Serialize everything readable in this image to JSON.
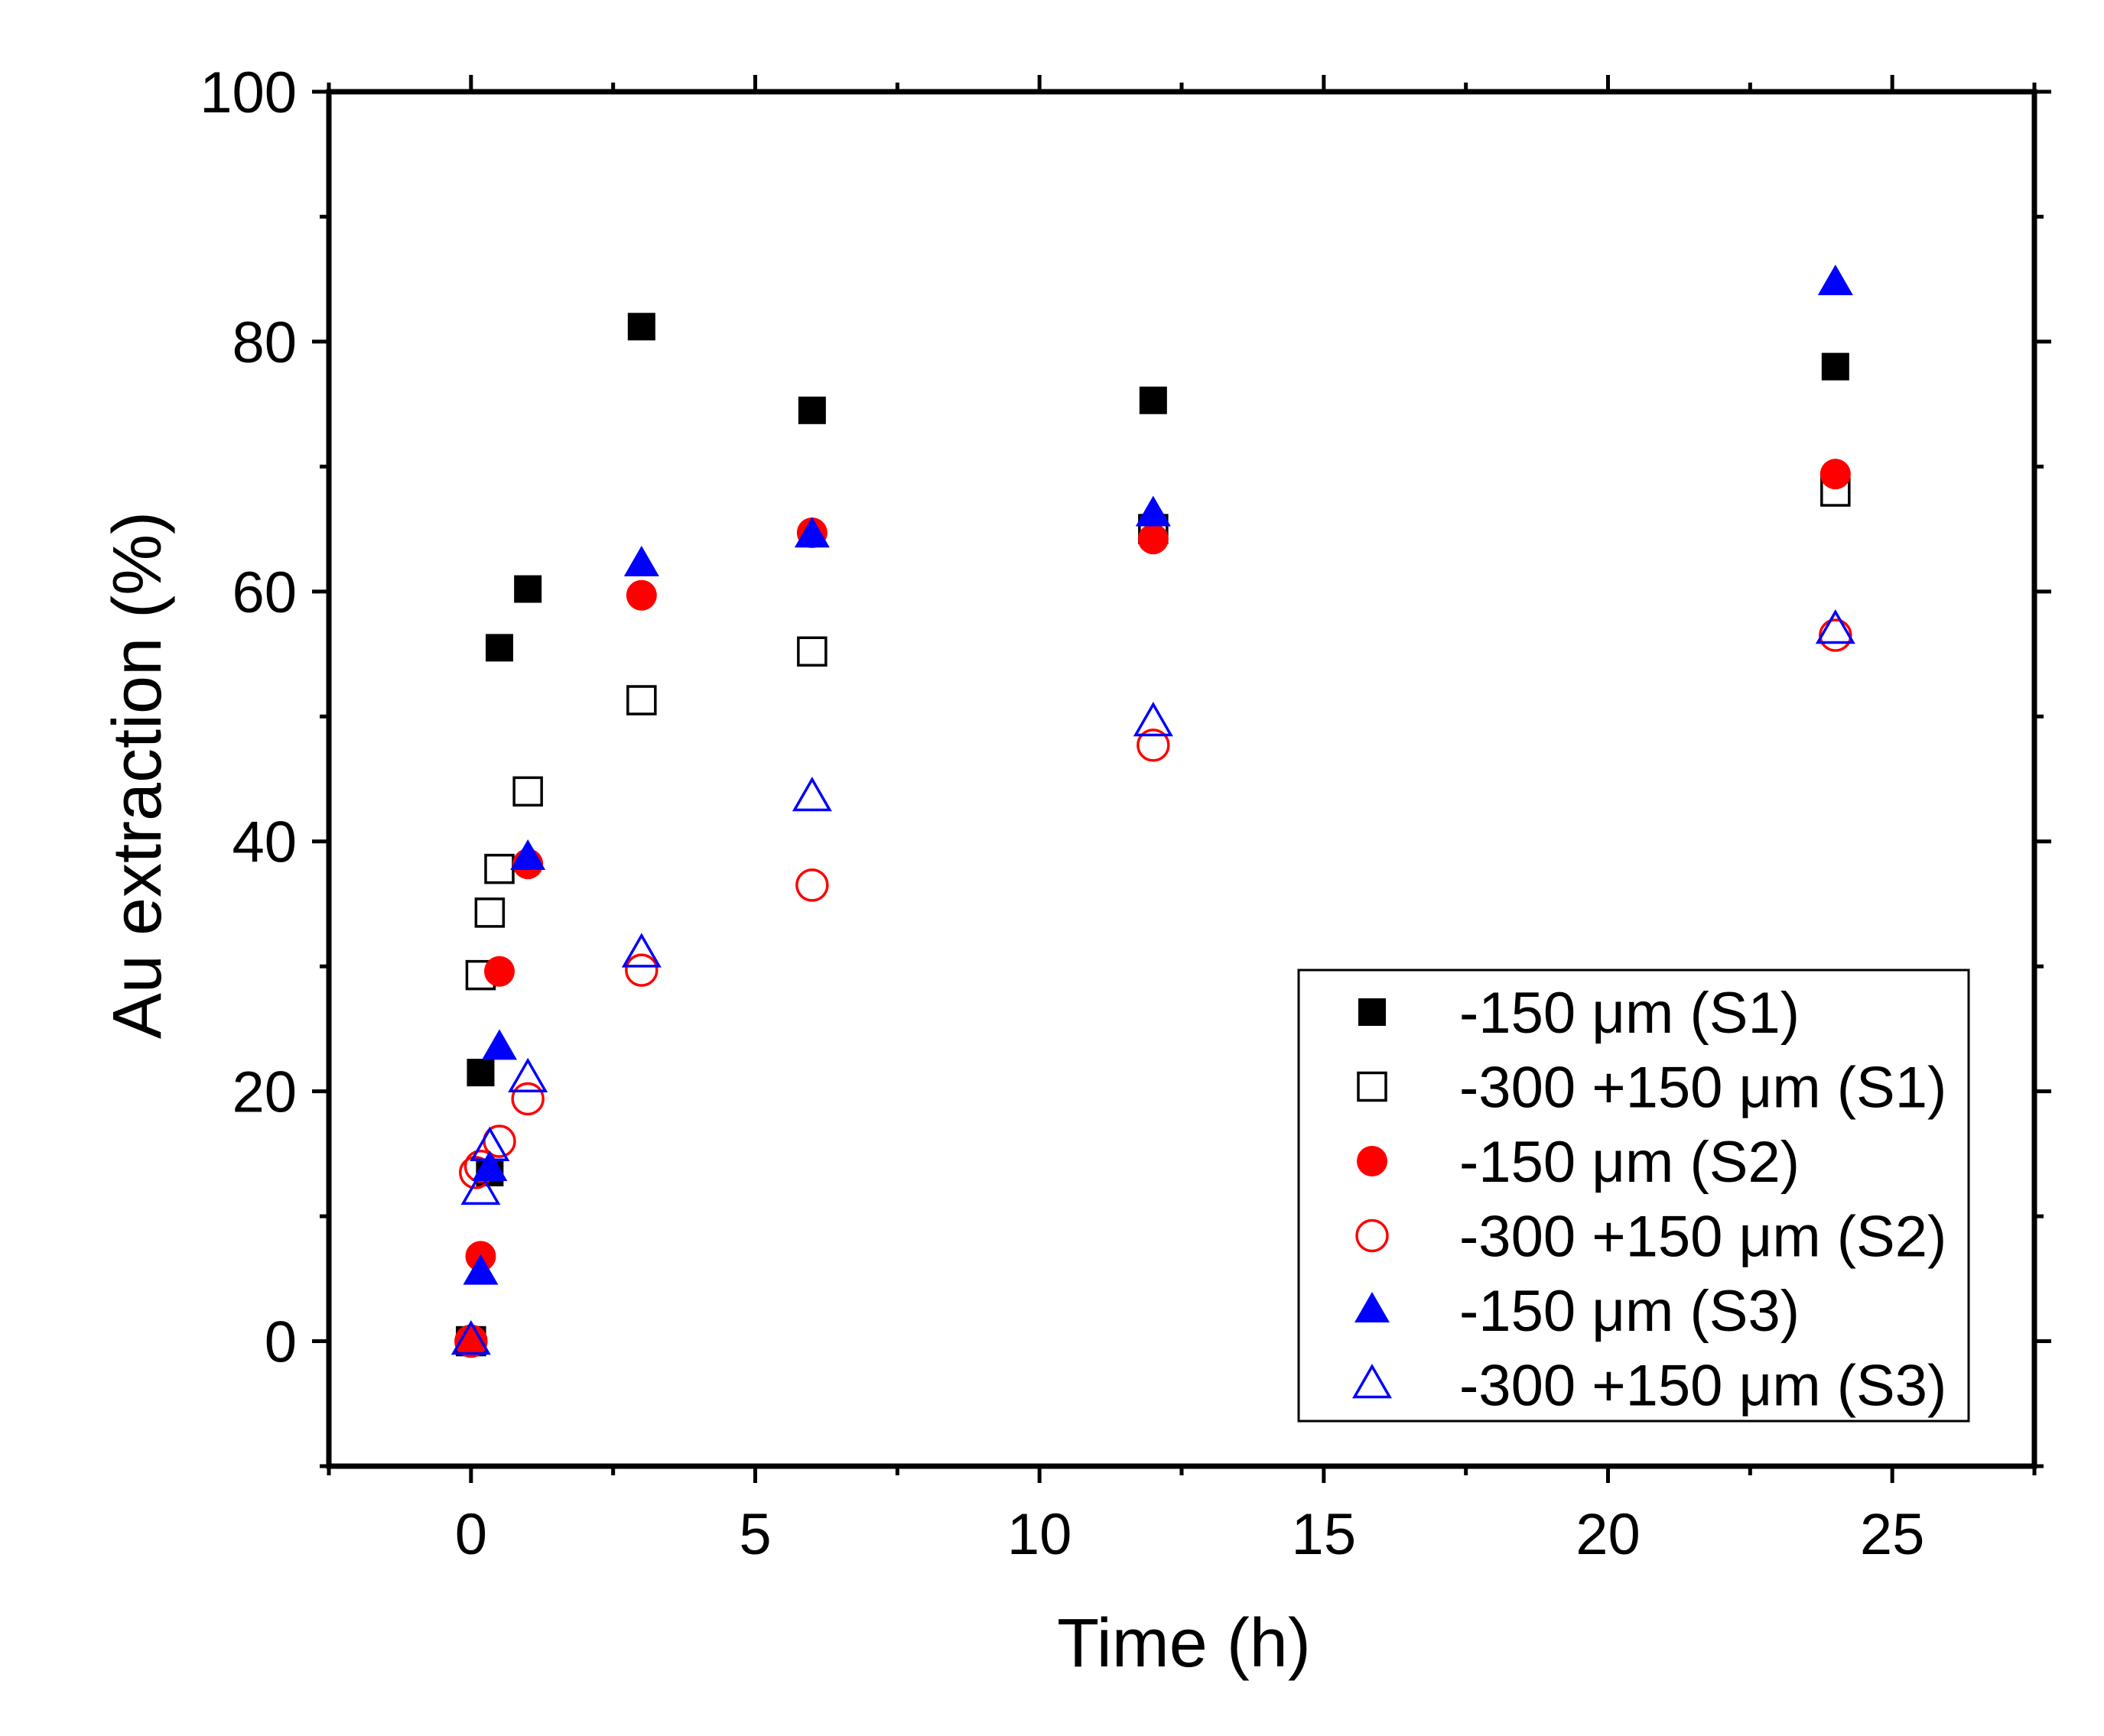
{
  "chart_data": {
    "type": "scatter",
    "title": "",
    "xlabel": "Time (h)",
    "ylabel": "Au extraction (%)",
    "xlim": [
      -2.5,
      27.5
    ],
    "ylim": [
      -10,
      100
    ],
    "xticks": [
      0,
      5,
      10,
      15,
      20,
      25
    ],
    "xtick_labels": [
      "0",
      "5",
      "10",
      "15",
      "20",
      "25"
    ],
    "yticks": [
      0,
      20,
      40,
      60,
      80,
      100
    ],
    "ytick_labels": [
      "0",
      "20",
      "40",
      "60",
      "80",
      "100"
    ],
    "x_minor_step": 2.5,
    "y_minor_step": 10,
    "grid": false,
    "legend_position": "bottom-right",
    "series": [
      {
        "name": "-150 μm (S1)",
        "marker": "square",
        "filled": true,
        "color": "#000000",
        "x": [
          0,
          0.17,
          0.33,
          0.5,
          1,
          3,
          6,
          12,
          24
        ],
        "y": [
          0,
          21.5,
          13.5,
          55.5,
          60.2,
          81.2,
          74.5,
          75.3,
          78
        ]
      },
      {
        "name": "-300 +150 μm (S1)",
        "marker": "square",
        "filled": false,
        "color": "#000000",
        "x": [
          0,
          0.17,
          0.33,
          0.5,
          1,
          3,
          6,
          12,
          24
        ],
        "y": [
          0,
          29.3,
          34.3,
          37.8,
          44,
          51.3,
          55.2,
          65,
          68
        ]
      },
      {
        "name": "-150 μm (S2)",
        "marker": "circle",
        "filled": true,
        "color": "#ff0000",
        "x": [
          0,
          0.17,
          0.5,
          1,
          3,
          6,
          12,
          24
        ],
        "y": [
          0,
          6.8,
          29.6,
          38.2,
          59.7,
          64.7,
          64.2,
          69.4
        ]
      },
      {
        "name": "-300 +150 μm (S2)",
        "marker": "circle",
        "filled": false,
        "color": "#ff0000",
        "x": [
          0,
          0.08,
          0.17,
          0.5,
          1,
          3,
          6,
          12,
          24
        ],
        "y": [
          0,
          13.5,
          14,
          16,
          19.4,
          29.7,
          36.5,
          47.7,
          56.5
        ]
      },
      {
        "name": "-150 μm (S3)",
        "marker": "triangle",
        "filled": true,
        "color": "#0000ff",
        "x": [
          0.17,
          0.33,
          0.5,
          1,
          3,
          6,
          12,
          24
        ],
        "y": [
          5.5,
          13.8,
          23.5,
          38.7,
          62.2,
          64.5,
          66.2,
          84.7
        ]
      },
      {
        "name": "-300 +150 μm (S3)",
        "marker": "triangle",
        "filled": false,
        "color": "#0000ff",
        "x": [
          0,
          0.17,
          0.33,
          1,
          3,
          6,
          12,
          24
        ],
        "y": [
          0,
          12,
          15.5,
          21,
          31,
          43.5,
          49.5,
          56.9
        ]
      }
    ]
  }
}
